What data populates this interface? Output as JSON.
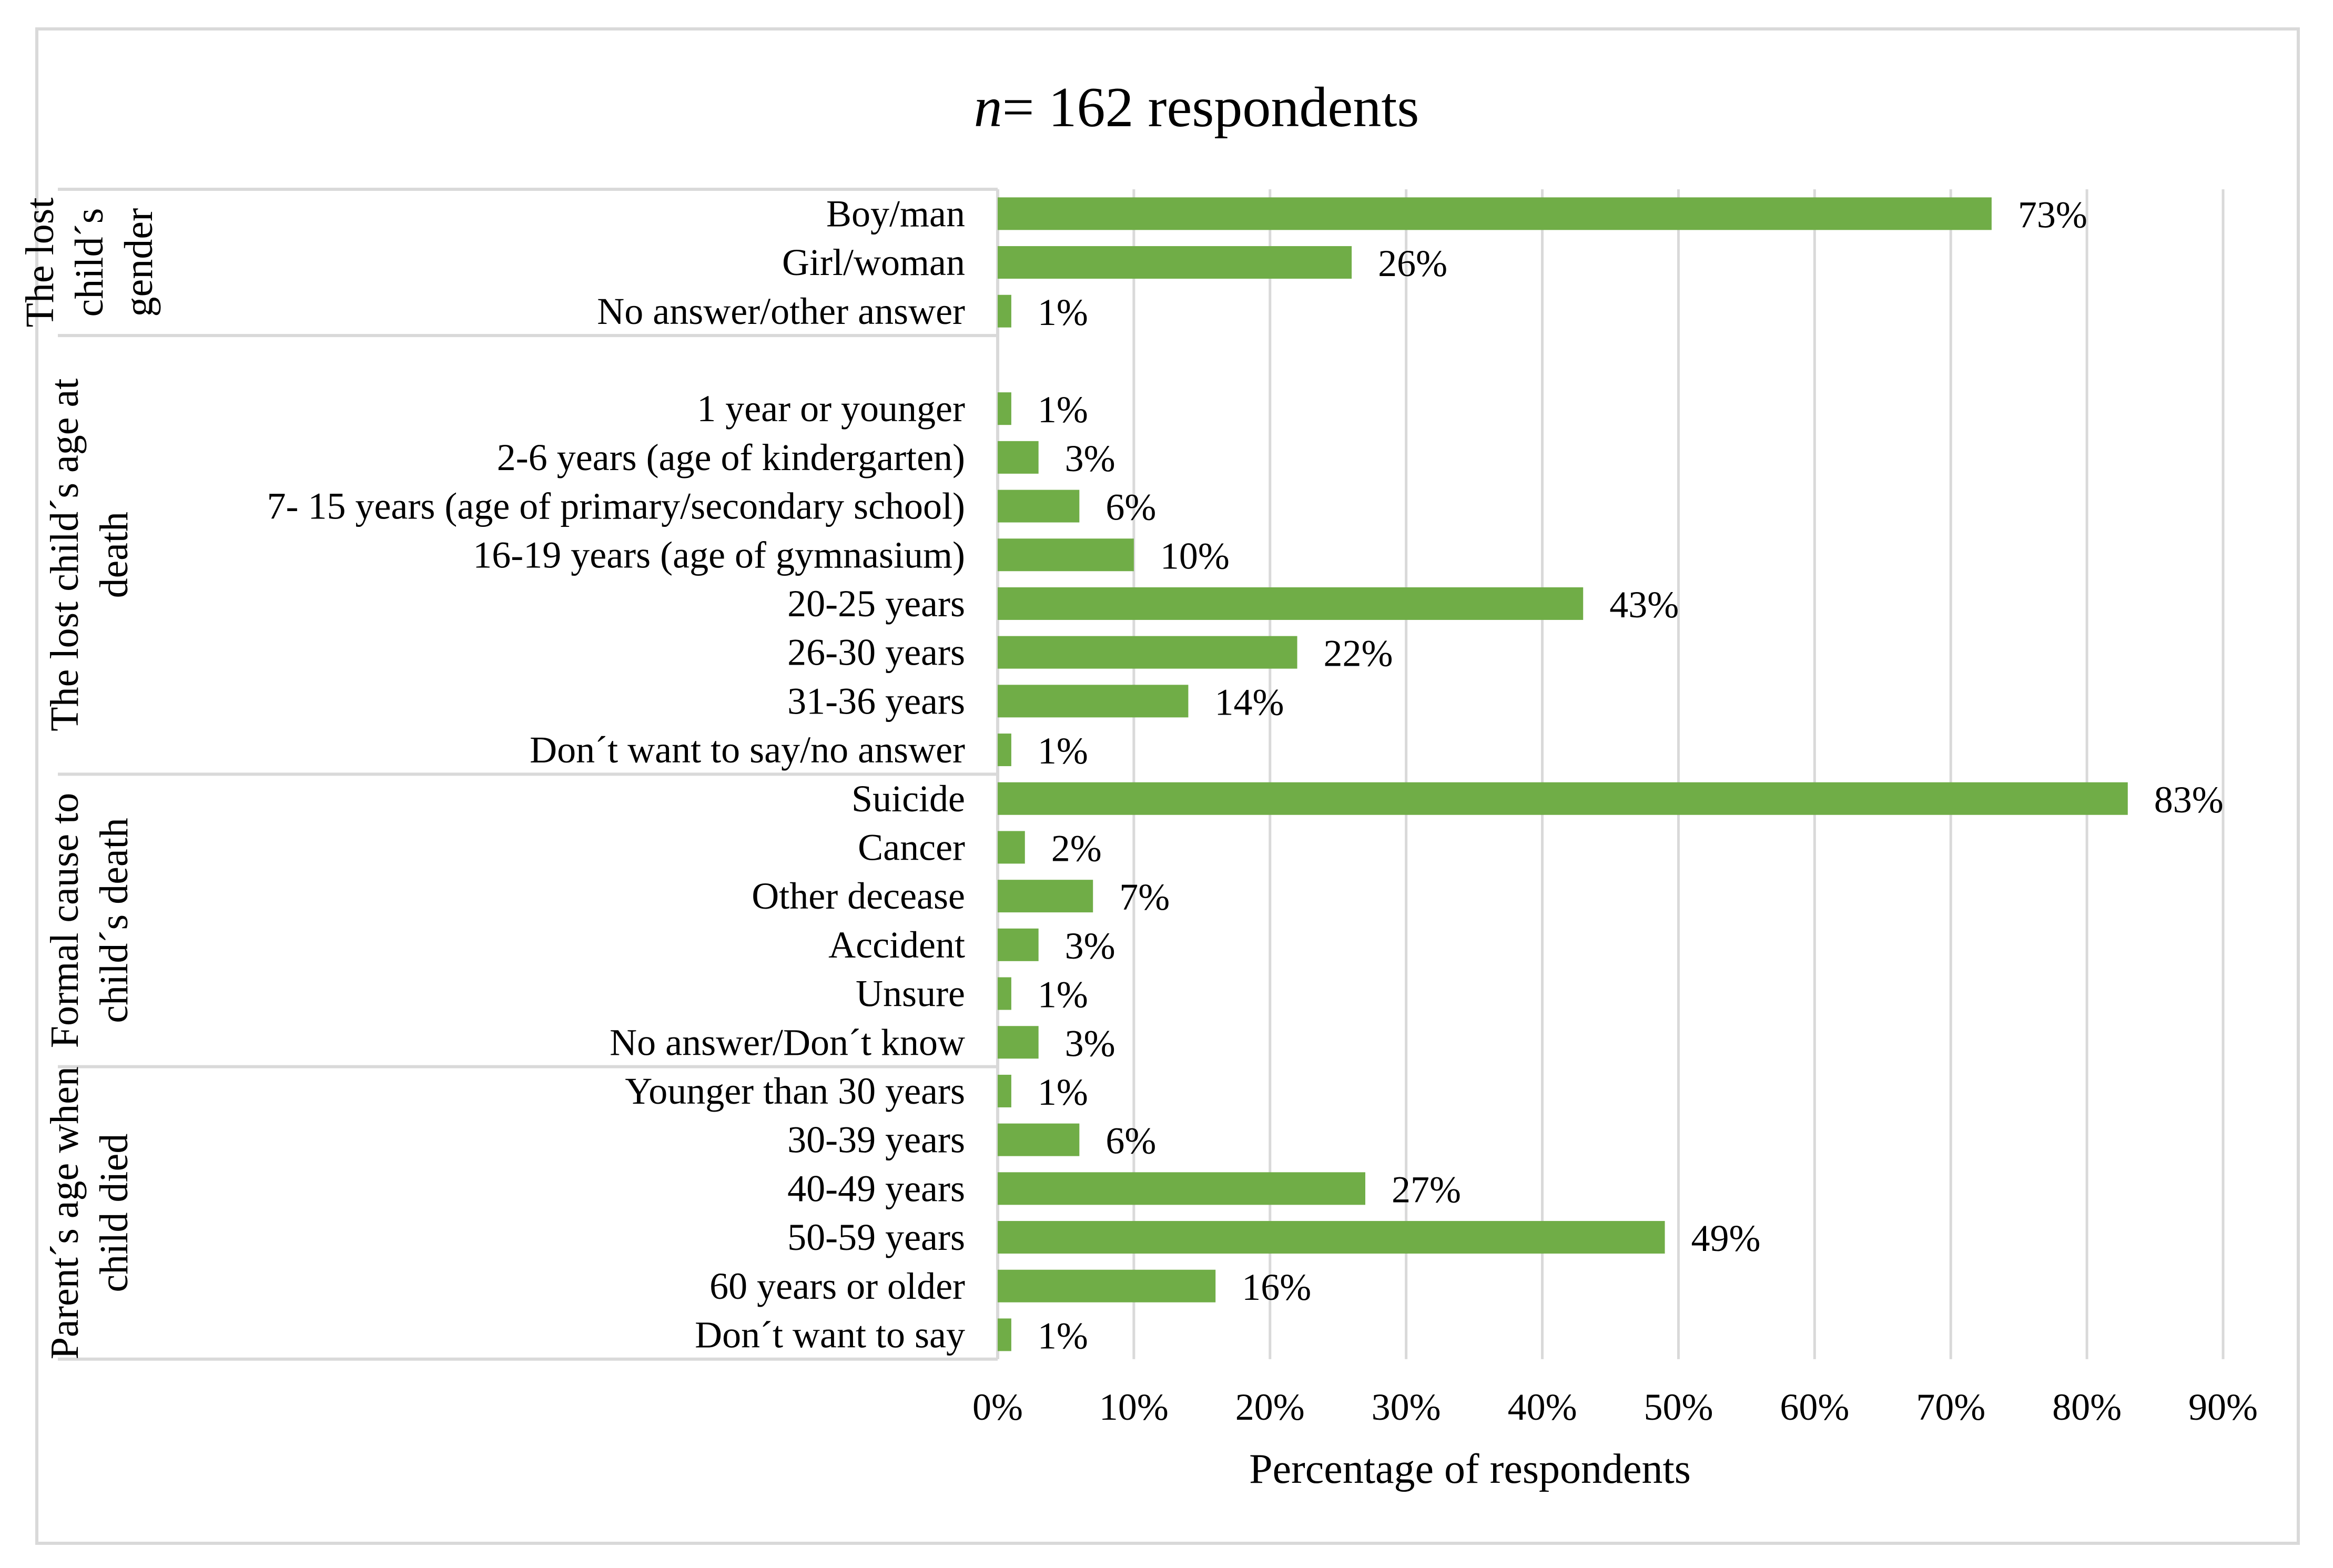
{
  "chart_data": {
    "type": "bar",
    "orientation": "horizontal",
    "title_italic": "n",
    "title_rest": "= 162 respondents",
    "xlabel": "Percentage of respondents",
    "xlim": [
      0,
      90
    ],
    "xtick_step": 10,
    "xticks": [
      "0%",
      "10%",
      "20%",
      "30%",
      "40%",
      "50%",
      "60%",
      "70%",
      "80%",
      "90%"
    ],
    "bar_color": "#70ad47",
    "grid": true,
    "groups": [
      {
        "label_lines": [
          "The lost",
          "child´s",
          "gender"
        ],
        "categories": [
          "Boy/man",
          "Girl/woman",
          "No answer/other answer"
        ],
        "values": [
          73,
          26,
          1
        ],
        "value_labels": [
          "73%",
          "26%",
          "1%"
        ]
      },
      {
        "label_lines": [
          "The lost child´s age at",
          "death"
        ],
        "categories": [
          "",
          "1 year or younger",
          "2-6 years (age of kindergarten)",
          "7- 15 years (age of primary/secondary school)",
          "16-19 years (age of gymnasium)",
          "20-25 years",
          "26-30 years",
          "31-36 years",
          "Don´t want to say/no answer"
        ],
        "values": [
          null,
          1,
          3,
          6,
          10,
          43,
          22,
          14,
          1
        ],
        "value_labels": [
          "",
          "1%",
          "3%",
          "6%",
          "10%",
          "43%",
          "22%",
          "14%",
          "1%"
        ]
      },
      {
        "label_lines": [
          "Formal cause to",
          "child´s death"
        ],
        "categories": [
          "Suicide",
          "Cancer",
          "Other decease",
          "Accident",
          "Unsure",
          "No answer/Don´t know"
        ],
        "values": [
          83,
          2,
          7,
          3,
          1,
          3
        ],
        "value_labels": [
          "83%",
          "2%",
          "7%",
          "3%",
          "1%",
          "3%"
        ]
      },
      {
        "label_lines": [
          "Parent´s age when",
          "child died"
        ],
        "categories": [
          "Younger than 30 years",
          "30-39 years",
          "40-49 years",
          "50-59 years",
          "60 years or older",
          "Don´t want to say"
        ],
        "values": [
          1,
          6,
          27,
          49,
          16,
          1
        ],
        "value_labels": [
          "1%",
          "6%",
          "27%",
          "49%",
          "16%",
          "1%"
        ]
      }
    ]
  }
}
